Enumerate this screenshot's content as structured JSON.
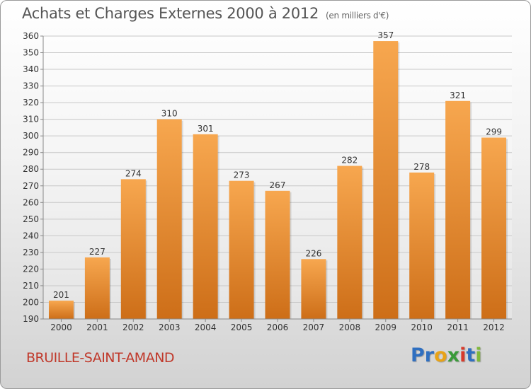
{
  "title": "Achats et Charges Externes 2000 à 2012",
  "unit": "(en milliers d'€)",
  "town": "BRUILLE-SAINT-AMAND",
  "logo": {
    "letters": [
      "P",
      "r",
      "o",
      "x",
      "i",
      "t",
      "i"
    ],
    "colors": [
      "#2f6fc0",
      "#2f6fc0",
      "#e8a317",
      "#3a9a3a",
      "#d93a2b",
      "#2f6fc0",
      "#7fb83a"
    ]
  },
  "colors": {
    "bar_light": "#f7a74f",
    "bar_dark": "#cd6e18",
    "grid": "#c8c8c8",
    "text": "#333333",
    "title": "#555555",
    "town": "#c0392b"
  },
  "chart_data": {
    "type": "bar",
    "categories": [
      "2000",
      "2001",
      "2002",
      "2003",
      "2004",
      "2005",
      "2006",
      "2007",
      "2008",
      "2009",
      "2010",
      "2011",
      "2012"
    ],
    "values": [
      201,
      227,
      274,
      310,
      301,
      273,
      267,
      226,
      282,
      357,
      278,
      321,
      299
    ],
    "title": "Achats et Charges Externes 2000 à 2012",
    "xlabel": "",
    "ylabel": "",
    "ylim": [
      190,
      360
    ],
    "yticks": [
      190,
      200,
      210,
      220,
      230,
      240,
      250,
      260,
      270,
      280,
      290,
      300,
      310,
      320,
      330,
      340,
      350,
      360
    ],
    "grid": true,
    "data_labels": true
  }
}
